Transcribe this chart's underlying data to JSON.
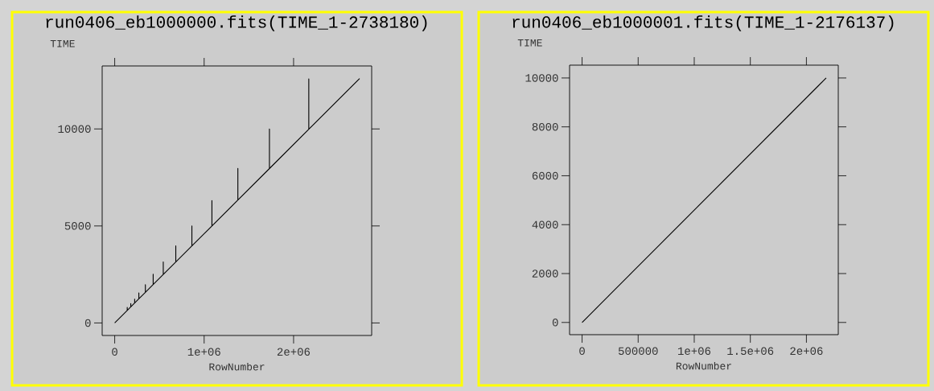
{
  "chart_data": [
    {
      "type": "line",
      "title": "run0406_eb1000000.fits(TIME_1-2738180)",
      "xlabel": "RowNumber",
      "ylabel": "TIME",
      "color": "#000000",
      "x": [
        0,
        140000,
        140000,
        140000,
        180000,
        180000,
        180000,
        223000,
        223000,
        223000,
        270000,
        270000,
        270000,
        343000,
        343000,
        343000,
        430000,
        430000,
        430000,
        543000,
        543000,
        543000,
        683000,
        683000,
        683000,
        863000,
        863000,
        863000,
        1087000,
        1087000,
        1087000,
        1377000,
        1377000,
        1377000,
        1730000,
        1730000,
        1730000,
        2170000,
        2170000,
        2170000,
        2738180
      ],
      "values": [
        0,
        644,
        800,
        644,
        828,
        1000,
        828,
        1026,
        1230,
        1026,
        1242,
        1550,
        1242,
        1578,
        1970,
        1578,
        1978,
        2510,
        1978,
        2498,
        3150,
        2498,
        3142,
        3970,
        3142,
        3970,
        5000,
        3970,
        5000,
        6310,
        5000,
        6334,
        7970,
        6334,
        7958,
        10000,
        7958,
        9982,
        12585,
        9982,
        12600
      ],
      "xlim": [
        -140000,
        2873000
      ],
      "ylim": [
        -646,
        13246
      ],
      "xticks": [
        0,
        {
          "value": 1000000,
          "label": "1e+06"
        },
        {
          "value": 2000000,
          "label": "2e+06"
        }
      ],
      "yticks": [
        0,
        5000,
        10000
      ]
    },
    {
      "type": "line",
      "title": "run0406_eb1000001.fits(TIME_1-2176137)",
      "xlabel": "RowNumber",
      "ylabel": "TIME",
      "color": "#000000",
      "x": [
        1,
        2176137
      ],
      "values": [
        0,
        10000
      ],
      "xlim": [
        -111500,
        2284000
      ],
      "ylim": [
        -500,
        10524
      ],
      "xticks": [
        0,
        500000,
        {
          "value": 1000000,
          "label": "1e+06"
        },
        {
          "value": 1500000,
          "label": "1.5e+06"
        },
        {
          "value": 2000000,
          "label": "2e+06"
        }
      ],
      "yticks": [
        0,
        2000,
        4000,
        6000,
        8000,
        10000
      ]
    }
  ]
}
